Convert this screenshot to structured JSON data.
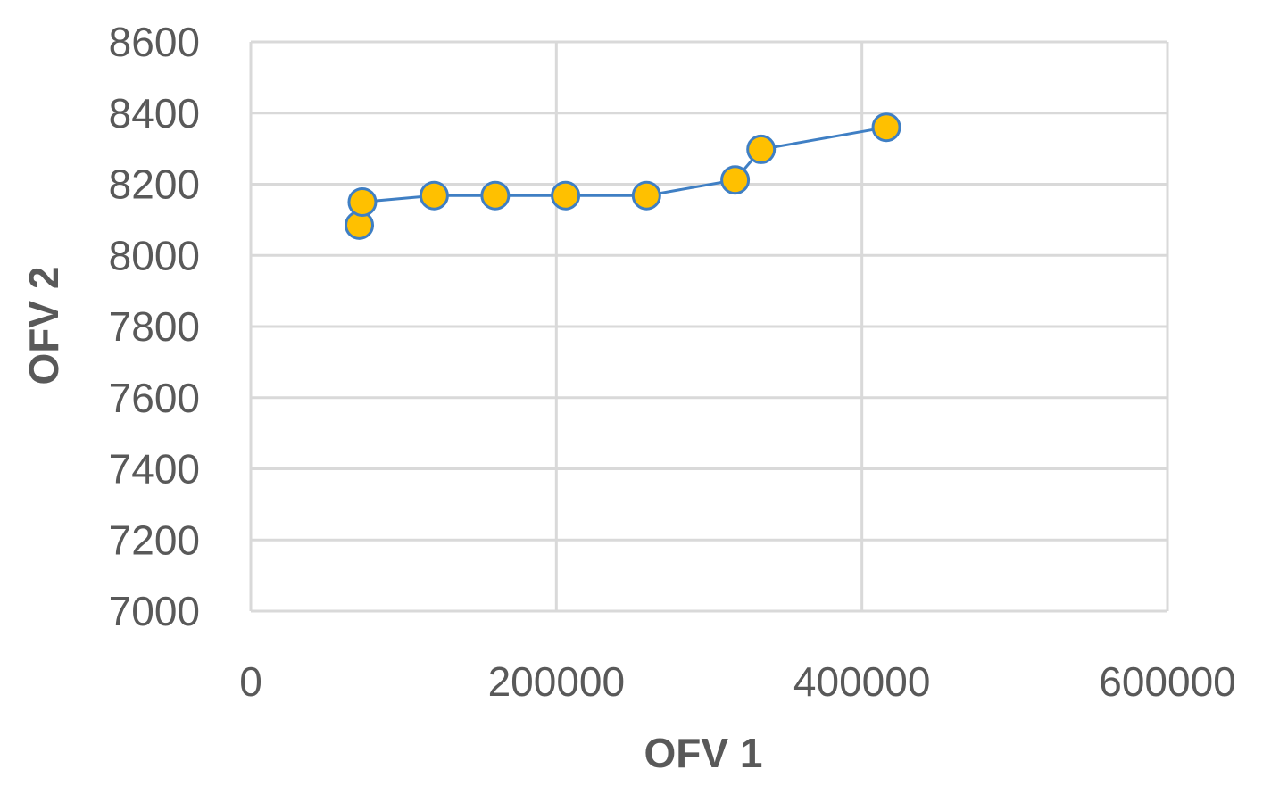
{
  "chart_data": {
    "type": "scatter",
    "title": "",
    "xlabel": "OFV 1",
    "ylabel": "OFV 2",
    "xlim": [
      0,
      600000
    ],
    "ylim": [
      7000,
      8600
    ],
    "x_ticks": [
      "0",
      "200000",
      "400000",
      "600000"
    ],
    "y_ticks": [
      "7000",
      "7200",
      "7400",
      "7600",
      "7800",
      "8000",
      "8200",
      "8400",
      "8600"
    ],
    "grid": true,
    "legend": "none",
    "colors": {
      "marker_fill": "#ffc000",
      "marker_edge": "#3f7fc4",
      "line": "#3f7fc4",
      "grid": "#d9d9d9",
      "text": "#595959"
    },
    "series": [
      {
        "x": [
          71000,
          73000,
          120000,
          160000,
          206000,
          259000,
          317000,
          334000,
          416000
        ],
        "y": [
          8085,
          8150,
          8168,
          8168,
          8168,
          8168,
          8212,
          8298,
          8360
        ]
      }
    ]
  }
}
